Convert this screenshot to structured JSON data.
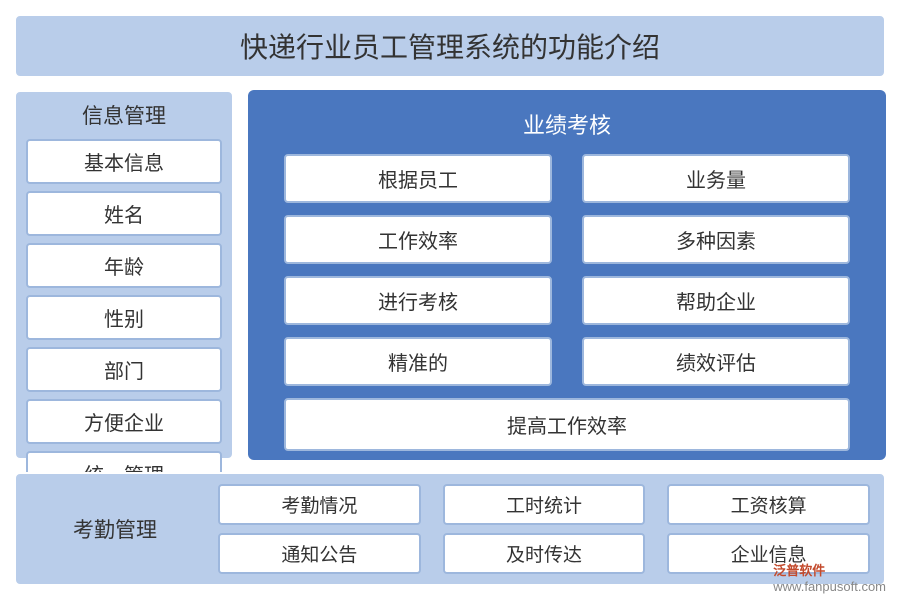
{
  "colors": {
    "page_bg": "#ffffff",
    "light_panel_bg": "#b9cdea",
    "light_panel_border": "#ffffff",
    "white_box_bg": "#ffffff",
    "white_box_border": "#9db7dd",
    "dark_panel_bg": "#4a77bf",
    "dark_panel_text": "#ffffff",
    "title_text": "#333333",
    "box_text": "#333333"
  },
  "typography": {
    "title_fontsize": 28,
    "header_fontsize": 21,
    "item_fontsize": 20
  },
  "title": "快递行业员工管理系统的功能介绍",
  "left": {
    "header": "信息管理",
    "items": [
      "基本信息",
      "姓名",
      "年龄",
      "性别",
      "部门",
      "方便企业",
      "统一管理"
    ]
  },
  "right": {
    "header": "业绩考核",
    "grid": [
      "根据员工",
      "业务量",
      "工作效率",
      "多种因素",
      "进行考核",
      "帮助企业",
      "精准的",
      "绩效评估"
    ],
    "wide": "提高工作效率"
  },
  "bottom": {
    "label": "考勤管理",
    "items": [
      "考勤情况",
      "工时统计",
      "工资核算",
      "通知公告",
      "及时传达",
      "企业信息"
    ]
  },
  "watermark": {
    "brand": "泛普软件",
    "url": "www.fanpusoft.com"
  }
}
